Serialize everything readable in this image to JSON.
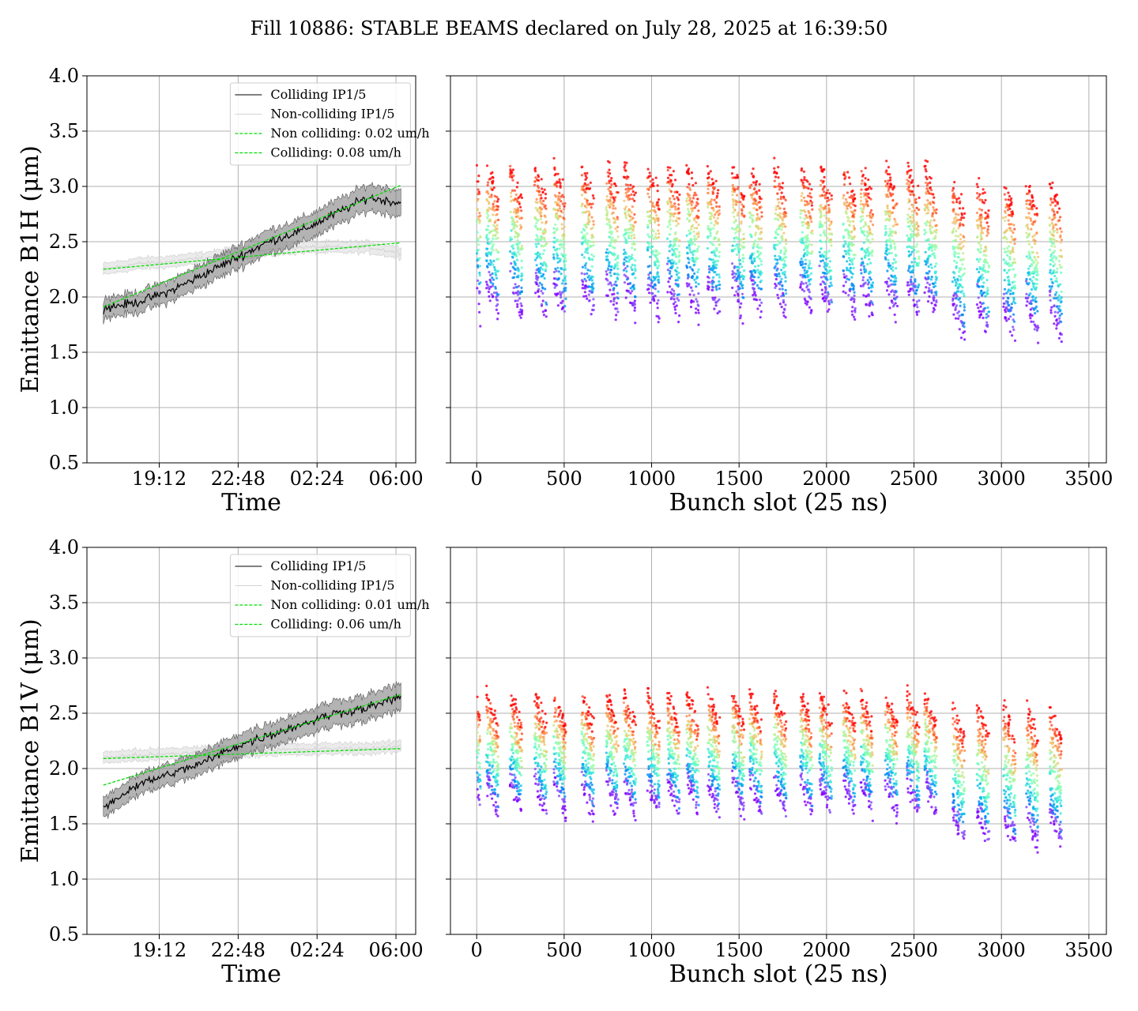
{
  "title": "Fill 10886: STABLE BEAMS declared on July 28, 2025 at 16:39:50",
  "chart_data": [
    {
      "id": "b1h-time",
      "type": "line",
      "xlabel": "Time",
      "ylabel": "Emittance B1H (μm)",
      "ylim": [
        0.5,
        4.0
      ],
      "yticks": [
        "0.5",
        "1.0",
        "1.5",
        "2.0",
        "2.5",
        "3.0",
        "3.5",
        "4.0"
      ],
      "xtick_labels": [
        "19:12",
        "22:48",
        "02:24",
        "06:00"
      ],
      "x": [
        "2025-07-28 17:10",
        "2025-07-28 18:00",
        "2025-07-28 19:12",
        "2025-07-28 20:30",
        "2025-07-28 22:48",
        "2025-07-29 00:30",
        "2025-07-29 02:24",
        "2025-07-29 04:00",
        "2025-07-29 05:00",
        "2025-07-29 06:00"
      ],
      "legend_position": "upper right",
      "series": [
        {
          "name": "Colliding IP1/5",
          "color": "#000000",
          "style": "solid",
          "band": true,
          "values": [
            1.9,
            1.95,
            2.05,
            2.2,
            2.35,
            2.5,
            2.6,
            2.75,
            2.9,
            2.85
          ]
        },
        {
          "name": "Non-colliding IP1/5",
          "color": "#d3d3d3",
          "style": "solid",
          "band": true,
          "values": [
            2.25,
            2.3,
            2.32,
            2.35,
            2.4,
            2.42,
            2.45,
            2.45,
            2.45,
            2.4
          ]
        },
        {
          "name": "Non colliding: 0.02 um/h",
          "color": "#00dd00",
          "style": "dashed",
          "fit": [
            2.25,
            2.49
          ]
        },
        {
          "name": "Colliding: 0.08 um/h",
          "color": "#00dd00",
          "style": "dashed",
          "fit": [
            1.91,
            3.01
          ]
        }
      ]
    },
    {
      "id": "b1h-bunch",
      "type": "scatter",
      "xlabel": "Bunch slot (25 ns)",
      "ylim": [
        0.5,
        4.0
      ],
      "xlim": [
        -150,
        3600
      ],
      "xticks": [
        0,
        500,
        1000,
        1500,
        2000,
        2500,
        3000,
        3500
      ],
      "color_map": "rainbow",
      "train_starts": [
        55,
        190,
        330,
        440,
        600,
        740,
        840,
        975,
        1090,
        1200,
        1320,
        1460,
        1560,
        1700,
        1850,
        1960,
        2095,
        2195,
        2335,
        2460,
        2560,
        2720,
        2860,
        3010,
        3140,
        3275
      ],
      "train_width": 70,
      "y_bottom": 1.95,
      "y_top": 3.0,
      "y_bottom_late": 1.75,
      "y_top_late": 2.85,
      "spread": 0.25
    },
    {
      "id": "b1v-time",
      "type": "line",
      "xlabel": "Time",
      "ylabel": "Emittance B1V (μm)",
      "ylim": [
        0.5,
        4.0
      ],
      "yticks": [
        "0.5",
        "1.0",
        "1.5",
        "2.0",
        "2.5",
        "3.0",
        "3.5",
        "4.0"
      ],
      "xtick_labels": [
        "19:12",
        "22:48",
        "02:24",
        "06:00"
      ],
      "x": [
        "2025-07-28 17:10",
        "2025-07-28 18:00",
        "2025-07-28 19:12",
        "2025-07-28 20:30",
        "2025-07-28 22:48",
        "2025-07-29 00:30",
        "2025-07-29 02:24",
        "2025-07-29 04:00",
        "2025-07-29 05:00",
        "2025-07-29 06:00"
      ],
      "legend_position": "upper right",
      "series": [
        {
          "name": "Colliding IP1/5",
          "color": "#000000",
          "style": "solid",
          "band": true,
          "values": [
            1.65,
            1.85,
            1.95,
            2.05,
            2.2,
            2.3,
            2.4,
            2.5,
            2.55,
            2.65
          ]
        },
        {
          "name": "Non-colliding IP1/5",
          "color": "#d3d3d3",
          "style": "solid",
          "band": true,
          "values": [
            2.1,
            2.12,
            2.13,
            2.15,
            2.15,
            2.17,
            2.17,
            2.18,
            2.18,
            2.2
          ]
        },
        {
          "name": "Non colliding: 0.01 um/h",
          "color": "#00dd00",
          "style": "dashed",
          "fit": [
            2.09,
            2.18
          ]
        },
        {
          "name": "Colliding: 0.06 um/h",
          "color": "#00dd00",
          "style": "dashed",
          "fit": [
            1.85,
            2.67
          ]
        }
      ]
    },
    {
      "id": "b1v-bunch",
      "type": "scatter",
      "xlabel": "Bunch slot (25 ns)",
      "ylim": [
        0.5,
        4.0
      ],
      "xlim": [
        -150,
        3600
      ],
      "xticks": [
        0,
        500,
        1000,
        1500,
        2000,
        2500,
        3000,
        3500
      ],
      "color_map": "rainbow",
      "train_starts": [
        55,
        190,
        330,
        440,
        600,
        740,
        840,
        975,
        1090,
        1200,
        1320,
        1460,
        1560,
        1700,
        1850,
        1960,
        2095,
        2195,
        2335,
        2460,
        2560,
        2720,
        2860,
        3010,
        3140,
        3275
      ],
      "train_width": 70,
      "y_bottom": 1.7,
      "y_top": 2.5,
      "y_bottom_late": 1.42,
      "y_top_late": 2.38,
      "spread": 0.22
    }
  ]
}
